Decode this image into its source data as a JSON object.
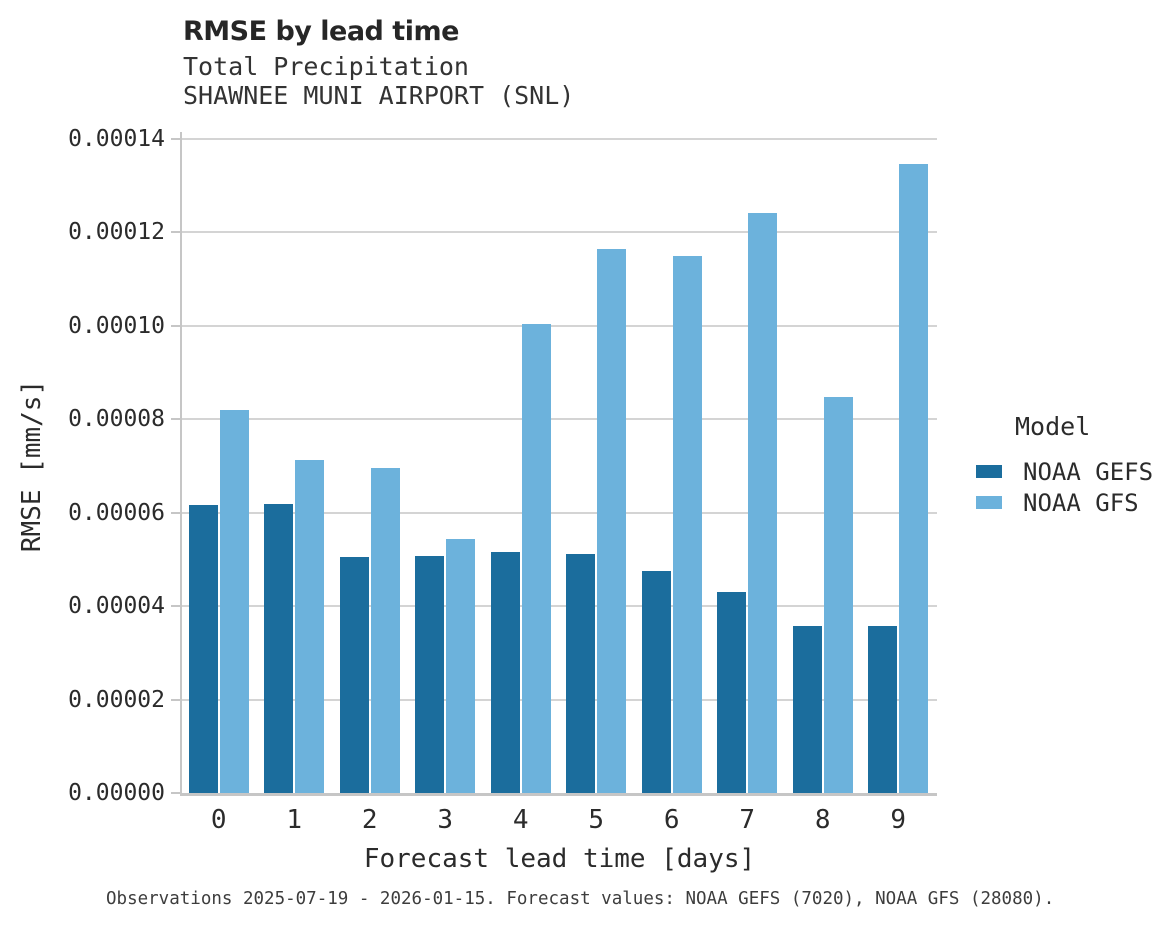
{
  "header": {
    "title": "RMSE by lead time",
    "subtitle1": "Total Precipitation",
    "subtitle2": "SHAWNEE MUNI AIRPORT (SNL)"
  },
  "chart_data": {
    "type": "bar",
    "title": "RMSE by lead time",
    "subtitle": [
      "Total Precipitation",
      "SHAWNEE MUNI AIRPORT (SNL)"
    ],
    "categories": [
      "0",
      "1",
      "2",
      "3",
      "4",
      "5",
      "6",
      "7",
      "8",
      "9"
    ],
    "series": [
      {
        "name": "NOAA GEFS",
        "color": "#1b6d9d",
        "values": [
          6.16e-05,
          6.19e-05,
          5.05e-05,
          5.07e-05,
          5.15e-05,
          5.12e-05,
          4.74e-05,
          4.31e-05,
          3.58e-05,
          3.58e-05
        ]
      },
      {
        "name": "NOAA GFS",
        "color": "#6cb2dc",
        "values": [
          8.19e-05,
          7.13e-05,
          6.95e-05,
          5.43e-05,
          0.0001003,
          0.0001163,
          0.0001148,
          0.000124,
          8.47e-05,
          0.0001346
        ]
      }
    ],
    "xlabel": "Forecast lead time [days]",
    "ylabel": "RMSE [mm/s]",
    "ylim": [
      0,
      0.00014
    ],
    "yticks": [
      0,
      2e-05,
      4e-05,
      6e-05,
      8e-05,
      0.0001,
      0.00012,
      0.00014
    ],
    "ytick_labels": [
      "0.00000",
      "0.00002",
      "0.00004",
      "0.00006",
      "0.00008",
      "0.00010",
      "0.00012",
      "0.00014"
    ],
    "grid": "horizontal",
    "grid_color": "#d4d4d4",
    "spine_color": "#c6c6c6",
    "legend_title": "Model",
    "legend_position": "right"
  },
  "caption": "Observations 2025-07-19 - 2026-01-15. Forecast values: NOAA GEFS (7020), NOAA GFS (28080)."
}
